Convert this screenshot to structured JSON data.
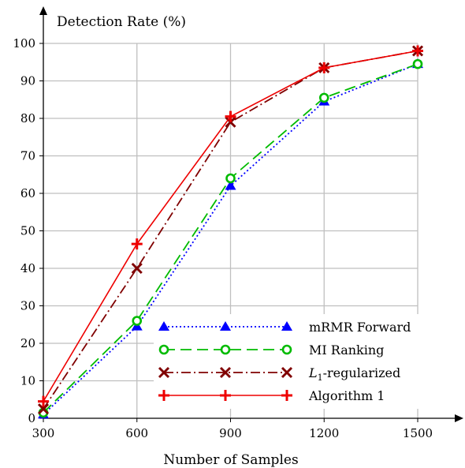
{
  "chart_data": {
    "type": "line",
    "xlabel": "Number of Samples",
    "ylabel": "Detection Rate (%)",
    "x": [
      300,
      600,
      900,
      1200,
      1500
    ],
    "x_ticks": [
      "300",
      "600",
      "900",
      "1200",
      "1500"
    ],
    "y_ticks": [
      "0",
      "10",
      "20",
      "30",
      "40",
      "50",
      "60",
      "70",
      "80",
      "90",
      "100"
    ],
    "xlim": [
      300,
      1500
    ],
    "ylim": [
      0,
      100
    ],
    "grid": true,
    "legend_position": "bottom-right",
    "series": [
      {
        "name": "mRMR Forward",
        "values": [
          1,
          24.5,
          62,
          84.5,
          94.5
        ],
        "color": "#0000ff",
        "marker": "triangle",
        "line": "dotted"
      },
      {
        "name": "MI Ranking",
        "values": [
          1.5,
          26,
          64,
          85.5,
          94.5
        ],
        "color": "#00bb00",
        "marker": "circle",
        "line": "dashed"
      },
      {
        "name": "L1-regularized",
        "values": [
          2.5,
          40,
          79,
          93.5,
          98
        ],
        "color": "#800000",
        "marker": "x",
        "line": "dashdot"
      },
      {
        "name": "Algorithm 1",
        "values": [
          4.5,
          46.5,
          80.5,
          93.5,
          98
        ],
        "color": "#ee0000",
        "marker": "plus",
        "line": "solid"
      }
    ]
  }
}
